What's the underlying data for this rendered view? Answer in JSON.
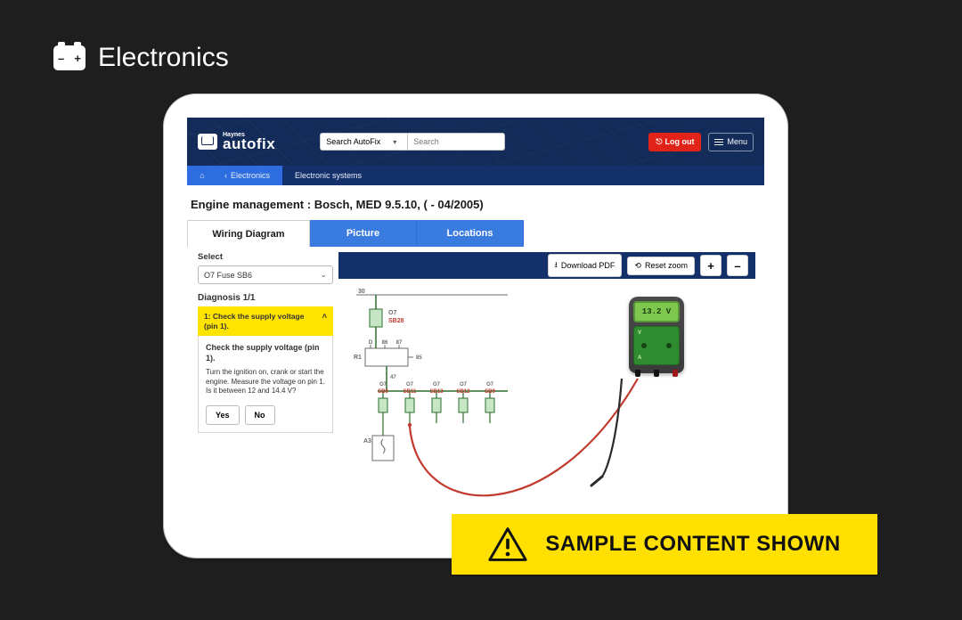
{
  "category": {
    "label": "Electronics"
  },
  "app": {
    "brand_line1": "Haynes",
    "brand_line2": "autofix",
    "search_scope": "Search AutoFix",
    "search_placeholder": "Search",
    "logout_label": "Log out",
    "menu_label": "Menu"
  },
  "crumbs": {
    "back_label": "Electronics",
    "current": "Electronic systems"
  },
  "page": {
    "title": "Engine management :  Bosch, MED 9.5.10, ( - 04/2005)"
  },
  "tabs": {
    "t0": "Wiring Diagram",
    "t1": "Picture",
    "t2": "Locations"
  },
  "sidebar": {
    "select_label": "Select",
    "component_value": "O7  Fuse  SB6",
    "diagnosis_label": "Diagnosis 1/1",
    "accordion_title": "1: Check the supply voltage (pin 1).",
    "step_title": "Check the supply voltage (pin 1).",
    "step_text": "Turn the ignition on, crank or start the engine. Measure the voltage on pin 1. Is it between 12 and 14.4 V?",
    "yes": "Yes",
    "no": "No"
  },
  "toolbar": {
    "download": "Download PDF",
    "reset_zoom": "Reset zoom",
    "zoom_in": "+",
    "zoom_out": "–"
  },
  "multimeter": {
    "reading": "13.2 V"
  },
  "diagram": {
    "top_label": "30",
    "fuse_main": {
      "name": "O7",
      "code": "SB28"
    },
    "relay_label": "R1",
    "relay_pins": [
      "D",
      "86",
      "87"
    ],
    "relay_side": "85",
    "relay_bottom": "47",
    "fuses": [
      {
        "name": "O7",
        "code": "SB6"
      },
      {
        "name": "O7",
        "code": "SB11"
      },
      {
        "name": "O7",
        "code": "SB13"
      },
      {
        "name": "O7",
        "code": "SB12"
      },
      {
        "name": "O7",
        "code": "SB9"
      }
    ],
    "module_label": "A3",
    "colors": {
      "label_grey": "#6b6b6b",
      "label_red": "#c23a2e",
      "wire": "#2c6e2c",
      "fuse_fill": "#c6e6c6",
      "lead_red": "#c23a2e",
      "lead_black": "#2b2b2b"
    }
  },
  "banner": {
    "text": "SAMPLE CONTENT SHOWN"
  }
}
